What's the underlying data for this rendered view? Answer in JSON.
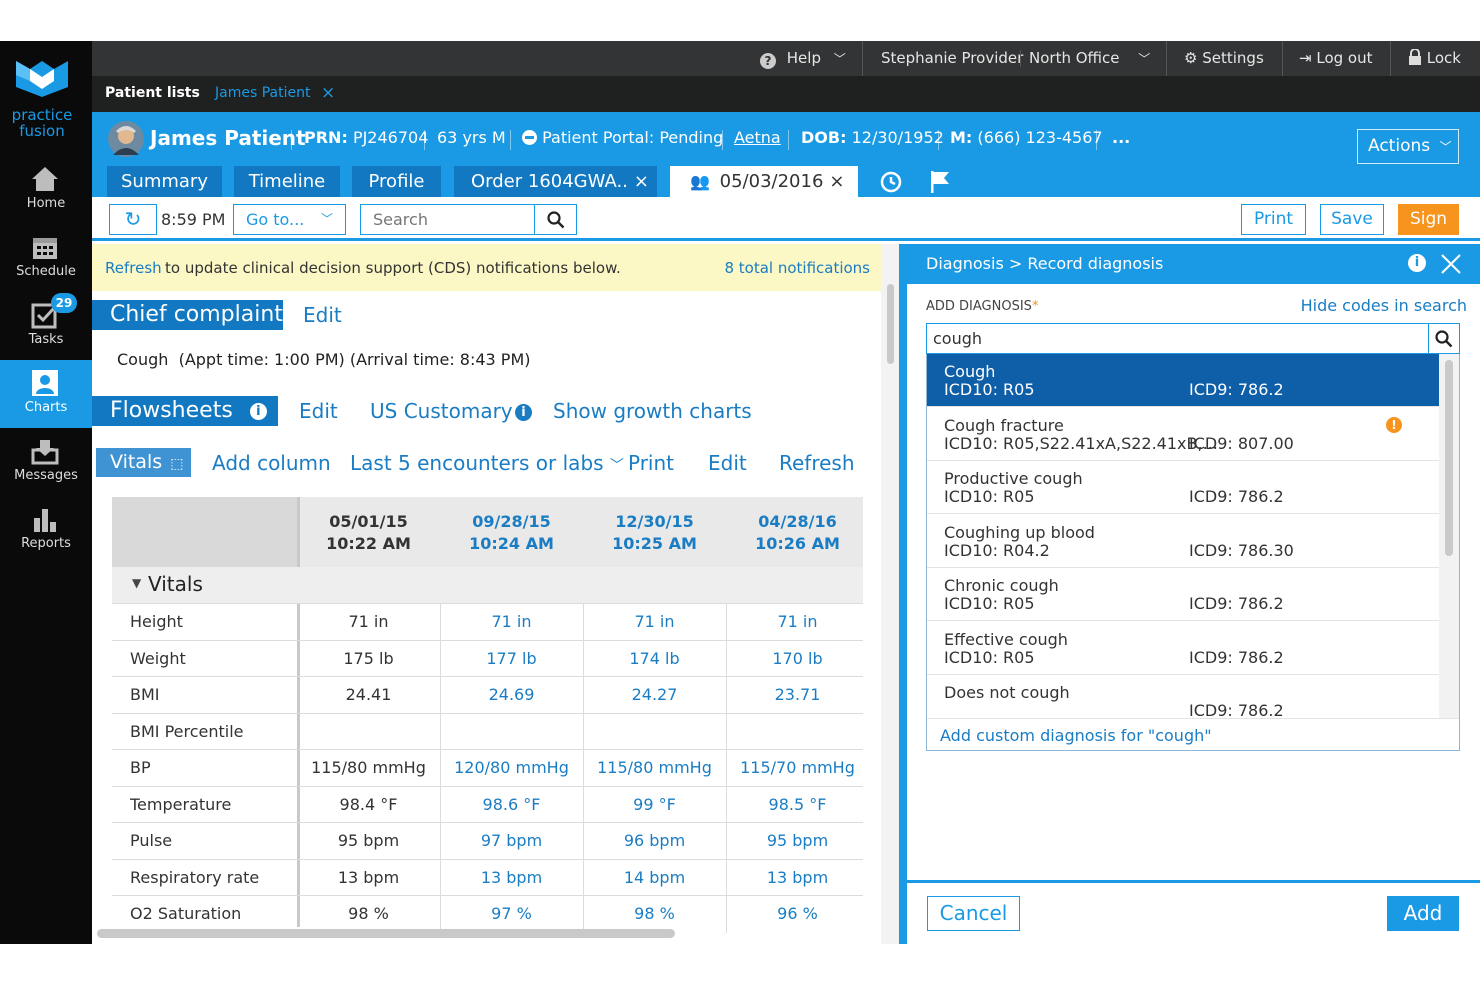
{
  "brand": {
    "name": "practice\nfusion",
    "line1": "practice",
    "line2": "fusion"
  },
  "leftnav": {
    "items": [
      {
        "label": "Home",
        "icon": "home-icon"
      },
      {
        "label": "Schedule",
        "icon": "calendar-icon"
      },
      {
        "label": "Tasks",
        "icon": "checkbox-icon",
        "badge": "29"
      },
      {
        "label": "Charts",
        "icon": "person-icon",
        "active": true
      },
      {
        "label": "Messages",
        "icon": "inbox-icon"
      },
      {
        "label": "Reports",
        "icon": "bar-chart-icon"
      }
    ]
  },
  "topbar": {
    "help": "Help",
    "user": "Stephanie Provider",
    "office": "North Office",
    "settings": "Settings",
    "logout": "Log out",
    "lock": "Lock"
  },
  "patient_tabs": {
    "lists": "Patient lists",
    "current": "James Patient"
  },
  "patient": {
    "name": "James Patient",
    "prn_label": "PRN:",
    "prn": "PJ246704",
    "age": "63 yrs M",
    "portal": "Patient Portal: Pending",
    "insurance": "Aetna",
    "dob_label": "DOB:",
    "dob": "12/30/1952",
    "phone_label": "M:",
    "phone": "(666) 123-4567",
    "more": "...",
    "actions": "Actions"
  },
  "chart_tabs": {
    "summary": "Summary",
    "timeline": "Timeline",
    "profile": "Profile",
    "order": "Order 1604GWA..",
    "encounter": "05/03/2016"
  },
  "toolbar": {
    "time": "8:59 PM",
    "goto": "Go to...",
    "search_placeholder": "Search",
    "print": "Print",
    "save": "Save",
    "sign": "Sign"
  },
  "cds": {
    "refresh": "Refresh",
    "message": "to update clinical decision support (CDS) notifications below.",
    "count": "8 total notifications"
  },
  "chief_complaint": {
    "title": "Chief complaint",
    "edit": "Edit",
    "text": "Cough  (Appt time: 1:00 PM) (Arrival time: 8:43 PM)"
  },
  "flowsheets": {
    "title": "Flowsheets",
    "edit": "Edit",
    "units": "US Customary",
    "growth": "Show growth charts"
  },
  "vitals_bar": {
    "vitals": "Vitals",
    "add_column": "Add column",
    "filter": "Last 5 encounters or labs",
    "print": "Print",
    "edit": "Edit",
    "refresh": "Refresh"
  },
  "grid": {
    "section": "Vitals",
    "columns": [
      {
        "date": "05/01/15",
        "time": "10:22 AM"
      },
      {
        "date": "09/28/15",
        "time": "10:24 AM"
      },
      {
        "date": "12/30/15",
        "time": "10:25 AM"
      },
      {
        "date": "04/28/16",
        "time": "10:26 AM"
      }
    ],
    "rows": [
      {
        "label": "Height",
        "values": [
          "71 in",
          "71 in",
          "71 in",
          "71 in"
        ]
      },
      {
        "label": "Weight",
        "values": [
          "175 lb",
          "177 lb",
          "174 lb",
          "170 lb"
        ]
      },
      {
        "label": "BMI",
        "values": [
          "24.41",
          "24.69",
          "24.27",
          "23.71"
        ]
      },
      {
        "label": "BMI Percentile",
        "values": [
          "",
          "",
          "",
          ""
        ]
      },
      {
        "label": "BP",
        "values": [
          "115/80 mmHg",
          "120/80 mmHg",
          "115/80 mmHg",
          "115/70 mmHg"
        ]
      },
      {
        "label": "Temperature",
        "values": [
          "98.4 °F",
          "98.6 °F",
          "99 °F",
          "98.5 °F"
        ]
      },
      {
        "label": "Pulse",
        "values": [
          "95 bpm",
          "97 bpm",
          "96 bpm",
          "95 bpm"
        ]
      },
      {
        "label": "Respiratory rate",
        "values": [
          "13 bpm",
          "13 bpm",
          "14 bpm",
          "13 bpm"
        ]
      },
      {
        "label": "O2 Saturation",
        "values": [
          "98 %",
          "97 %",
          "98 %",
          "96 %"
        ]
      }
    ]
  },
  "diagnosis": {
    "breadcrumb": "Diagnosis > Record diagnosis",
    "add_label": "ADD DIAGNOSIS",
    "required": "*",
    "hide_codes": "Hide codes in search",
    "query": "cough",
    "results": [
      {
        "name": "Cough",
        "icd10": "ICD10: R05",
        "icd9": "ICD9: 786.2",
        "selected": true
      },
      {
        "name": "Cough fracture",
        "icd10": "ICD10: R05,S22.41xA,S22.41xB,...",
        "icd9": "ICD9: 807.00",
        "warning": true
      },
      {
        "name": "Productive cough",
        "icd10": "ICD10: R05",
        "icd9": "ICD9: 786.2"
      },
      {
        "name": "Coughing up blood",
        "icd10": "ICD10: R04.2",
        "icd9": "ICD9: 786.30"
      },
      {
        "name": "Chronic cough",
        "icd10": "ICD10: R05",
        "icd9": "ICD9: 786.2"
      },
      {
        "name": "Effective cough",
        "icd10": "ICD10: R05",
        "icd9": "ICD9: 786.2"
      },
      {
        "name": "Does not cough",
        "icd10": "",
        "icd9": "ICD9: 786.2"
      }
    ],
    "custom": "Add custom diagnosis for \"cough\"",
    "cancel": "Cancel",
    "add": "Add"
  },
  "colors": {
    "accent": "#1a9ae4",
    "dark_blue": "#1178c1",
    "selected": "#0f5ea8",
    "sign": "#f7941d",
    "nav_bg": "#0a0a0a"
  }
}
